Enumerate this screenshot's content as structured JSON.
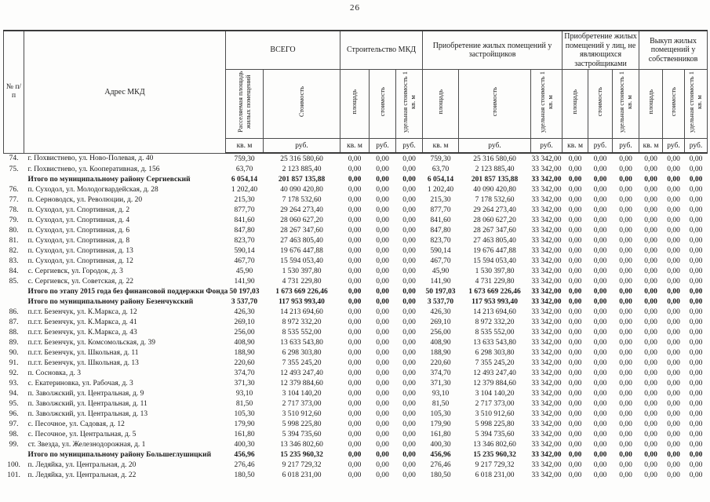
{
  "page": {
    "number": "26"
  },
  "table": {
    "headers": {
      "num": "№ п/п",
      "address": "Адрес МКД",
      "groups": [
        {
          "label": "ВСЕГО",
          "cols": [
            "Расселяемая площадь жилых помещений",
            "Стоимость"
          ],
          "units": [
            "кв. м",
            "руб."
          ]
        },
        {
          "label": "Строительство МКД",
          "cols": [
            "площадь",
            "стоимость",
            "удельная стоимость 1 кв. м"
          ],
          "units": [
            "кв. м",
            "руб.",
            "руб."
          ]
        },
        {
          "label": "Приобретение жилых помещений у застройщиков",
          "cols": [
            "площадь",
            "стоимость",
            "удельная стоимость 1 кв. м"
          ],
          "units": [
            "кв. м",
            "руб.",
            "руб."
          ]
        },
        {
          "label": "Приобретение жилых помещений у лиц, не являющихся застройщиками",
          "cols": [
            "площадь",
            "стоимость",
            "удельная стоимость 1 кв. м"
          ],
          "units": [
            "кв. м",
            "руб.",
            "руб."
          ]
        },
        {
          "label": "Выкуп жилых помещений у собственников",
          "cols": [
            "площадь",
            "стоимость",
            "удельная стоимость 1 кв. м"
          ],
          "units": [
            "кв. м",
            "руб.",
            "руб."
          ]
        }
      ]
    },
    "rows": [
      {
        "num": "74.",
        "address": "г. Похвистнево, ул. Ново-Полевая, д. 40",
        "bold": false,
        "cells": [
          "759,30",
          "25 316 580,60",
          "0,00",
          "0,00",
          "0,00",
          "759,30",
          "25 316 580,60",
          "33 342,00",
          "0,00",
          "0,00",
          "0,00",
          "0,00",
          "0,00",
          "0,00"
        ]
      },
      {
        "num": "75.",
        "address": "г. Похвистнево, ул. Кооперативная, д. 156",
        "bold": false,
        "cells": [
          "63,70",
          "2 123 885,40",
          "0,00",
          "0,00",
          "0,00",
          "63,70",
          "2 123 885,40",
          "33 342,00",
          "0,00",
          "0,00",
          "0,00",
          "0,00",
          "0,00",
          "0,00"
        ]
      },
      {
        "num": "",
        "address": "Итого по муниципальному району Сергиевский",
        "bold": true,
        "cells": [
          "6 054,14",
          "201 857 135,88",
          "0,00",
          "0,00",
          "0,00",
          "6 054,14",
          "201 857 135,88",
          "33 342,00",
          "0,00",
          "0,00",
          "0,00",
          "0,00",
          "0,00",
          "0,00"
        ]
      },
      {
        "num": "76.",
        "address": "п. Суходол, ул. Молодогвардейская, д. 28",
        "bold": false,
        "cells": [
          "1 202,40",
          "40 090 420,80",
          "0,00",
          "0,00",
          "0,00",
          "1 202,40",
          "40 090 420,80",
          "33 342,00",
          "0,00",
          "0,00",
          "0,00",
          "0,00",
          "0,00",
          "0,00"
        ]
      },
      {
        "num": "77.",
        "address": "п. Серноводск, ул. Революции, д. 20",
        "bold": false,
        "cells": [
          "215,30",
          "7 178 532,60",
          "0,00",
          "0,00",
          "0,00",
          "215,30",
          "7 178 532,60",
          "33 342,00",
          "0,00",
          "0,00",
          "0,00",
          "0,00",
          "0,00",
          "0,00"
        ]
      },
      {
        "num": "78.",
        "address": "п. Суходол, ул. Спортивная, д. 2",
        "bold": false,
        "cells": [
          "877,70",
          "29 264 273,40",
          "0,00",
          "0,00",
          "0,00",
          "877,70",
          "29 264 273,40",
          "33 342,00",
          "0,00",
          "0,00",
          "0,00",
          "0,00",
          "0,00",
          "0,00"
        ]
      },
      {
        "num": "79.",
        "address": "п. Суходол, ул. Спортивная, д. 4",
        "bold": false,
        "cells": [
          "841,60",
          "28 060 627,20",
          "0,00",
          "0,00",
          "0,00",
          "841,60",
          "28 060 627,20",
          "33 342,00",
          "0,00",
          "0,00",
          "0,00",
          "0,00",
          "0,00",
          "0,00"
        ]
      },
      {
        "num": "80.",
        "address": "п. Суходол, ул. Спортивная, д. 6",
        "bold": false,
        "cells": [
          "847,80",
          "28 267 347,60",
          "0,00",
          "0,00",
          "0,00",
          "847,80",
          "28 267 347,60",
          "33 342,00",
          "0,00",
          "0,00",
          "0,00",
          "0,00",
          "0,00",
          "0,00"
        ]
      },
      {
        "num": "81.",
        "address": "п. Суходол, ул. Спортивная, д. 8",
        "bold": false,
        "cells": [
          "823,70",
          "27 463 805,40",
          "0,00",
          "0,00",
          "0,00",
          "823,70",
          "27 463 805,40",
          "33 342,00",
          "0,00",
          "0,00",
          "0,00",
          "0,00",
          "0,00",
          "0,00"
        ]
      },
      {
        "num": "82.",
        "address": "п. Суходол, ул. Спортивная, д. 13",
        "bold": false,
        "cells": [
          "590,14",
          "19 676 447,88",
          "0,00",
          "0,00",
          "0,00",
          "590,14",
          "19 676 447,88",
          "33 342,00",
          "0,00",
          "0,00",
          "0,00",
          "0,00",
          "0,00",
          "0,00"
        ]
      },
      {
        "num": "83.",
        "address": "п. Суходол, ул. Спортивная, д. 12",
        "bold": false,
        "cells": [
          "467,70",
          "15 594 053,40",
          "0,00",
          "0,00",
          "0,00",
          "467,70",
          "15 594 053,40",
          "33 342,00",
          "0,00",
          "0,00",
          "0,00",
          "0,00",
          "0,00",
          "0,00"
        ]
      },
      {
        "num": "84.",
        "address": "с. Сергиевск, ул. Городок, д. 3",
        "bold": false,
        "cells": [
          "45,90",
          "1 530 397,80",
          "0,00",
          "0,00",
          "0,00",
          "45,90",
          "1 530 397,80",
          "33 342,00",
          "0,00",
          "0,00",
          "0,00",
          "0,00",
          "0,00",
          "0,00"
        ]
      },
      {
        "num": "85.",
        "address": "с. Сергиевск, ул. Советская, д. 22",
        "bold": false,
        "cells": [
          "141,90",
          "4 731 229,80",
          "0,00",
          "0,00",
          "0,00",
          "141,90",
          "4 731 229,80",
          "33 342,00",
          "0,00",
          "0,00",
          "0,00",
          "0,00",
          "0,00",
          "0,00"
        ]
      },
      {
        "num": "",
        "address": "Итого по этапу 2015 года без финансовой поддержки Фонда",
        "bold": true,
        "cells": [
          "50 197,03",
          "1 673 669 226,46",
          "0,00",
          "0,00",
          "0,00",
          "50 197,03",
          "1 673 669 226,46",
          "33 342,00",
          "0,00",
          "0,00",
          "0,00",
          "0,00",
          "0,00",
          "0,00"
        ]
      },
      {
        "num": "",
        "address": "Итого по муниципальному району Безенчукский",
        "bold": true,
        "cells": [
          "3 537,70",
          "117 953 993,40",
          "0,00",
          "0,00",
          "0,00",
          "3 537,70",
          "117 953 993,40",
          "33 342,00",
          "0,00",
          "0,00",
          "0,00",
          "0,00",
          "0,00",
          "0,00"
        ]
      },
      {
        "num": "86.",
        "address": "п.г.т. Безенчук, ул. К.Маркса, д. 12",
        "bold": false,
        "cells": [
          "426,30",
          "14 213 694,60",
          "0,00",
          "0,00",
          "0,00",
          "426,30",
          "14 213 694,60",
          "33 342,00",
          "0,00",
          "0,00",
          "0,00",
          "0,00",
          "0,00",
          "0,00"
        ]
      },
      {
        "num": "87.",
        "address": "п.г.т. Безенчук, ул. К.Маркса, д. 41",
        "bold": false,
        "cells": [
          "269,10",
          "8 972 332,20",
          "0,00",
          "0,00",
          "0,00",
          "269,10",
          "8 972 332,20",
          "33 342,00",
          "0,00",
          "0,00",
          "0,00",
          "0,00",
          "0,00",
          "0,00"
        ]
      },
      {
        "num": "88.",
        "address": "п.г.т. Безенчук, ул. К.Маркса, д. 43",
        "bold": false,
        "cells": [
          "256,00",
          "8 535 552,00",
          "0,00",
          "0,00",
          "0,00",
          "256,00",
          "8 535 552,00",
          "33 342,00",
          "0,00",
          "0,00",
          "0,00",
          "0,00",
          "0,00",
          "0,00"
        ]
      },
      {
        "num": "89.",
        "address": "п.г.т. Безенчук, ул. Комсомольская, д. 39",
        "bold": false,
        "cells": [
          "408,90",
          "13 633 543,80",
          "0,00",
          "0,00",
          "0,00",
          "408,90",
          "13 633 543,80",
          "33 342,00",
          "0,00",
          "0,00",
          "0,00",
          "0,00",
          "0,00",
          "0,00"
        ]
      },
      {
        "num": "90.",
        "address": "п.г.т. Безенчук, ул. Школьная, д. 11",
        "bold": false,
        "cells": [
          "188,90",
          "6 298 303,80",
          "0,00",
          "0,00",
          "0,00",
          "188,90",
          "6 298 303,80",
          "33 342,00",
          "0,00",
          "0,00",
          "0,00",
          "0,00",
          "0,00",
          "0,00"
        ]
      },
      {
        "num": "91.",
        "address": "п.г.т. Безенчук, ул. Школьная, д. 13",
        "bold": false,
        "cells": [
          "220,60",
          "7 355 245,20",
          "0,00",
          "0,00",
          "0,00",
          "220,60",
          "7 355 245,20",
          "33 342,00",
          "0,00",
          "0,00",
          "0,00",
          "0,00",
          "0,00",
          "0,00"
        ]
      },
      {
        "num": "92.",
        "address": "п. Сосновка, д. 3",
        "bold": false,
        "cells": [
          "374,70",
          "12 493 247,40",
          "0,00",
          "0,00",
          "0,00",
          "374,70",
          "12 493 247,40",
          "33 342,00",
          "0,00",
          "0,00",
          "0,00",
          "0,00",
          "0,00",
          "0,00"
        ]
      },
      {
        "num": "93.",
        "address": "с. Екатериновка, ул. Рабочая, д. 3",
        "bold": false,
        "cells": [
          "371,30",
          "12 379 884,60",
          "0,00",
          "0,00",
          "0,00",
          "371,30",
          "12 379 884,60",
          "33 342,00",
          "0,00",
          "0,00",
          "0,00",
          "0,00",
          "0,00",
          "0,00"
        ]
      },
      {
        "num": "94.",
        "address": "п. Заволжский, ул. Центральная, д. 9",
        "bold": false,
        "cells": [
          "93,10",
          "3 104 140,20",
          "0,00",
          "0,00",
          "0,00",
          "93,10",
          "3 104 140,20",
          "33 342,00",
          "0,00",
          "0,00",
          "0,00",
          "0,00",
          "0,00",
          "0,00"
        ]
      },
      {
        "num": "95.",
        "address": "п. Заволжский, ул. Центральная, д. 11",
        "bold": false,
        "cells": [
          "81,50",
          "2 717 373,00",
          "0,00",
          "0,00",
          "0,00",
          "81,50",
          "2 717 373,00",
          "33 342,00",
          "0,00",
          "0,00",
          "0,00",
          "0,00",
          "0,00",
          "0,00"
        ]
      },
      {
        "num": "96.",
        "address": "п. Заволжский, ул. Центральная, д. 13",
        "bold": false,
        "cells": [
          "105,30",
          "3 510 912,60",
          "0,00",
          "0,00",
          "0,00",
          "105,30",
          "3 510 912,60",
          "33 342,00",
          "0,00",
          "0,00",
          "0,00",
          "0,00",
          "0,00",
          "0,00"
        ]
      },
      {
        "num": "97.",
        "address": "с. Песочное, ул. Садовая, д. 12",
        "bold": false,
        "cells": [
          "179,90",
          "5 998 225,80",
          "0,00",
          "0,00",
          "0,00",
          "179,90",
          "5 998 225,80",
          "33 342,00",
          "0,00",
          "0,00",
          "0,00",
          "0,00",
          "0,00",
          "0,00"
        ]
      },
      {
        "num": "98.",
        "address": "с. Песочное, ул. Центральная, д. 5",
        "bold": false,
        "cells": [
          "161,80",
          "5 394 735,60",
          "0,00",
          "0,00",
          "0,00",
          "161,80",
          "5 394 735,60",
          "33 342,00",
          "0,00",
          "0,00",
          "0,00",
          "0,00",
          "0,00",
          "0,00"
        ]
      },
      {
        "num": "99.",
        "address": "ст. Звезда, ул. Железнодорожная, д. 1",
        "bold": false,
        "cells": [
          "400,30",
          "13 346 802,60",
          "0,00",
          "0,00",
          "0,00",
          "400,30",
          "13 346 802,60",
          "33 342,00",
          "0,00",
          "0,00",
          "0,00",
          "0,00",
          "0,00",
          "0,00"
        ]
      },
      {
        "num": "",
        "address": "Итого по муниципальному району Большеглушицкий",
        "bold": true,
        "cells": [
          "456,96",
          "15 235 960,32",
          "0,00",
          "0,00",
          "0,00",
          "456,96",
          "15 235 960,32",
          "33 342,00",
          "0,00",
          "0,00",
          "0,00",
          "0,00",
          "0,00",
          "0,00"
        ]
      },
      {
        "num": "100.",
        "address": "п. Ледяйка, ул. Центральная, д. 20",
        "bold": false,
        "cells": [
          "276,46",
          "9 217 729,32",
          "0,00",
          "0,00",
          "0,00",
          "276,46",
          "9 217 729,32",
          "33 342,00",
          "0,00",
          "0,00",
          "0,00",
          "0,00",
          "0,00",
          "0,00"
        ]
      },
      {
        "num": "101.",
        "address": "п. Ледяйка, ул. Центральная, д. 22",
        "bold": false,
        "cells": [
          "180,50",
          "6 018 231,00",
          "0,00",
          "0,00",
          "0,00",
          "180,50",
          "6 018 231,00",
          "33 342,00",
          "0,00",
          "0,00",
          "0,00",
          "0,00",
          "0,00",
          "0,00"
        ]
      }
    ]
  }
}
